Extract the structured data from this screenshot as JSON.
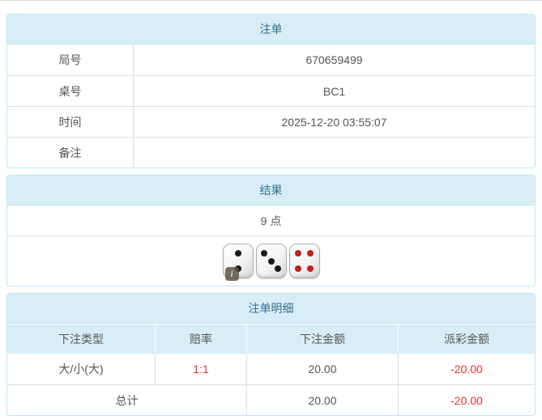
{
  "colors": {
    "accent_text": "#31708f",
    "header_bg": "#d9edf7",
    "panel_border": "#bce8f1",
    "divider": "#dddddd",
    "negative_red": "#ee2c2c",
    "pip_black": "#1a1a1a",
    "pip_red": "#c81e1e"
  },
  "bet_order": {
    "title": "注单",
    "rows": [
      {
        "label": "局号",
        "value": "670659499"
      },
      {
        "label": "桌号",
        "value": "BC1"
      },
      {
        "label": "时间",
        "value": "2025-12-20 03:55:07"
      },
      {
        "label": "备注",
        "value": ""
      }
    ]
  },
  "result": {
    "title": "结果",
    "points_text": "9 点",
    "dice": [
      {
        "value": 2,
        "color": "black"
      },
      {
        "value": 3,
        "color": "black"
      },
      {
        "value": 4,
        "color": "red"
      }
    ],
    "info_icon_label": "i"
  },
  "bet_details": {
    "title": "注单明细",
    "columns": [
      "下注类型",
      "赔率",
      "下注金额",
      "派彩金额"
    ],
    "rows": [
      {
        "bet_type": "大/小(大)",
        "odds": "1:1",
        "bet_amount": "20.00",
        "payout": "-20.00"
      }
    ],
    "total": {
      "label": "总计",
      "bet_amount": "20.00",
      "payout": "-20.00"
    }
  }
}
